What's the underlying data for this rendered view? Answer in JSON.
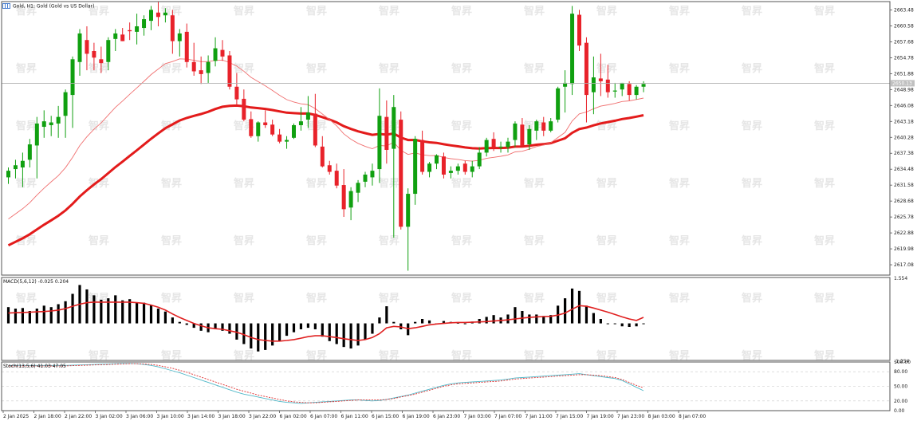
{
  "colors": {
    "bull": "#10a010",
    "bear": "#e8222a",
    "ma_slow": "#e31b1b",
    "ma_fast": "#f07070",
    "macd_hist": "#000000",
    "macd_signal": "#e02020",
    "stoch_k": "#50b8c8",
    "stoch_d": "#e03030",
    "frame": "#555555",
    "grid": "#c8c8c8"
  },
  "watermark_text": "智昇",
  "chart_data": [
    {
      "type": "candlestick",
      "title": "Gold, H1: Gold (Gold vs US Dollar)",
      "ylim": [
        2615.2,
        2665.0
      ],
      "y_ticks": [
        "2663.48",
        "2660.58",
        "2657.68",
        "2654.78",
        "2651.88",
        "2648.98",
        "2646.08",
        "2643.18",
        "2640.28",
        "2637.38",
        "2634.48",
        "2631.58",
        "2628.68",
        "2625.78",
        "2622.88",
        "2619.98",
        "2617.08"
      ],
      "current_price": 2650.13,
      "current_price_label": "2650.13",
      "x_ticks": [
        "2 Jan 2025",
        "2 Jan 18:00",
        "2 Jan 22:00",
        "3 Jan 02:00",
        "3 Jan 06:00",
        "3 Jan 10:00",
        "3 Jan 14:00",
        "3 Jan 18:00",
        "3 Jan 22:00",
        "6 Jan 02:00",
        "6 Jan 07:00",
        "6 Jan 11:00",
        "6 Jan 15:00",
        "6 Jan 19:00",
        "6 Jan 23:00",
        "7 Jan 03:00",
        "7 Jan 07:00",
        "7 Jan 11:00",
        "7 Jan 15:00",
        "7 Jan 19:00",
        "7 Jan 23:00",
        "8 Jan 03:00",
        "8 Jan 07:00"
      ],
      "candles": [
        [
          2633.0,
          2634.8,
          2631.8,
          2634.2
        ],
        [
          2634.5,
          2636.2,
          2632.8,
          2635.2
        ],
        [
          2634.8,
          2637.5,
          2631.2,
          2636.0
        ],
        [
          2636.2,
          2640.0,
          2634.8,
          2639.0
        ],
        [
          2638.8,
          2644.0,
          2632.8,
          2642.8
        ],
        [
          2642.2,
          2645.2,
          2640.2,
          2643.2
        ],
        [
          2642.5,
          2644.2,
          2640.5,
          2643.0
        ],
        [
          2642.8,
          2646.0,
          2640.2,
          2644.0
        ],
        [
          2644.2,
          2649.0,
          2640.2,
          2648.5
        ],
        [
          2648.0,
          2655.0,
          2642.0,
          2654.5
        ],
        [
          2654.0,
          2660.0,
          2651.5,
          2659.2
        ],
        [
          2658.0,
          2660.5,
          2652.5,
          2655.5
        ],
        [
          2656.0,
          2657.5,
          2652.5,
          2654.8
        ],
        [
          2654.5,
          2656.8,
          2652.0,
          2653.8
        ],
        [
          2654.0,
          2658.5,
          2652.5,
          2658.0
        ],
        [
          2658.2,
          2660.0,
          2656.0,
          2659.2
        ],
        [
          2659.0,
          2660.2,
          2657.8,
          2657.8
        ],
        [
          2659.8,
          2661.2,
          2658.0,
          2659.6
        ],
        [
          2659.5,
          2662.8,
          2657.2,
          2660.5
        ],
        [
          2660.2,
          2662.5,
          2658.8,
          2661.8
        ],
        [
          2661.5,
          2664.2,
          2659.8,
          2663.5
        ],
        [
          2663.0,
          2665.0,
          2660.5,
          2662.2
        ],
        [
          2662.5,
          2663.8,
          2661.2,
          2663.0
        ],
        [
          2662.5,
          2663.5,
          2655.5,
          2657.8
        ],
        [
          2657.8,
          2660.0,
          2655.0,
          2659.2
        ],
        [
          2659.5,
          2661.0,
          2653.0,
          2654.0
        ],
        [
          2654.0,
          2657.5,
          2651.5,
          2652.3
        ],
        [
          2652.5,
          2655.0,
          2650.0,
          2651.8
        ],
        [
          2652.0,
          2655.2,
          2650.2,
          2654.0
        ],
        [
          2654.2,
          2658.5,
          2653.2,
          2656.5
        ],
        [
          2656.2,
          2658.0,
          2654.2,
          2655.0
        ],
        [
          2655.2,
          2656.0,
          2649.0,
          2649.5
        ],
        [
          2649.5,
          2652.0,
          2646.0,
          2647.2
        ],
        [
          2647.3,
          2649.0,
          2643.2,
          2643.5
        ],
        [
          2643.6,
          2645.0,
          2640.2,
          2640.5
        ],
        [
          2640.5,
          2643.2,
          2639.5,
          2643.0
        ],
        [
          2643.0,
          2645.2,
          2642.0,
          2642.5
        ],
        [
          2642.6,
          2643.5,
          2640.5,
          2640.8
        ],
        [
          2640.8,
          2641.8,
          2639.2,
          2639.5
        ],
        [
          2639.5,
          2640.5,
          2638.2,
          2639.8
        ],
        [
          2640.2,
          2642.8,
          2640.0,
          2642.5
        ],
        [
          2642.5,
          2645.8,
          2641.5,
          2643.2
        ],
        [
          2643.5,
          2647.8,
          2642.0,
          2644.8
        ],
        [
          2644.6,
          2648.2,
          2638.5,
          2638.8
        ],
        [
          2638.6,
          2640.5,
          2634.8,
          2635.0
        ],
        [
          2635.2,
          2636.0,
          2633.5,
          2634.0
        ],
        [
          2634.2,
          2635.5,
          2631.0,
          2631.5
        ],
        [
          2631.6,
          2634.5,
          2625.8,
          2627.2
        ],
        [
          2627.5,
          2631.2,
          2625.2,
          2630.5
        ],
        [
          2630.2,
          2632.5,
          2628.5,
          2632.0
        ],
        [
          2632.2,
          2634.0,
          2631.2,
          2633.5
        ],
        [
          2633.0,
          2635.5,
          2631.5,
          2634.2
        ],
        [
          2634.5,
          2649.2,
          2632.0,
          2644.2
        ],
        [
          2644.0,
          2647.0,
          2635.5,
          2638.0
        ],
        [
          2638.2,
          2648.0,
          2622.0,
          2645.8
        ],
        [
          2643.5,
          2645.0,
          2623.5,
          2624.0
        ],
        [
          2624.0,
          2631.0,
          2616.0,
          2630.0
        ],
        [
          2630.0,
          2640.5,
          2628.0,
          2640.0
        ],
        [
          2639.8,
          2641.5,
          2633.5,
          2634.0
        ],
        [
          2634.0,
          2635.8,
          2633.0,
          2635.5
        ],
        [
          2635.5,
          2637.2,
          2634.5,
          2637.0
        ],
        [
          2636.8,
          2637.5,
          2632.8,
          2633.5
        ],
        [
          2633.8,
          2635.0,
          2632.8,
          2634.2
        ],
        [
          2634.2,
          2635.5,
          2633.5,
          2635.0
        ],
        [
          2635.5,
          2636.0,
          2633.5,
          2634.0
        ],
        [
          2634.0,
          2636.0,
          2633.0,
          2635.0
        ],
        [
          2635.0,
          2638.5,
          2634.5,
          2637.5
        ],
        [
          2637.5,
          2640.2,
          2636.8,
          2639.8
        ],
        [
          2640.0,
          2641.2,
          2637.8,
          2638.5
        ],
        [
          2638.5,
          2639.5,
          2637.5,
          2638.6
        ],
        [
          2638.5,
          2640.2,
          2637.5,
          2639.5
        ],
        [
          2639.8,
          2643.2,
          2638.5,
          2642.8
        ],
        [
          2642.6,
          2643.8,
          2638.8,
          2638.8
        ],
        [
          2639.0,
          2642.5,
          2638.0,
          2641.8
        ],
        [
          2641.5,
          2643.5,
          2639.8,
          2643.2
        ],
        [
          2643.0,
          2644.0,
          2640.5,
          2641.5
        ],
        [
          2641.5,
          2643.8,
          2641.2,
          2643.2
        ],
        [
          2643.5,
          2649.5,
          2643.0,
          2649.2
        ],
        [
          2649.5,
          2652.5,
          2644.8,
          2650.2
        ],
        [
          2650.0,
          2664.2,
          2648.0,
          2662.8
        ],
        [
          2662.6,
          2663.5,
          2656.0,
          2657.0
        ],
        [
          2657.5,
          2658.5,
          2643.0,
          2648.0
        ],
        [
          2648.5,
          2655.0,
          2644.5,
          2651.2
        ],
        [
          2651.0,
          2655.5,
          2647.8,
          2650.5
        ],
        [
          2650.8,
          2653.5,
          2647.5,
          2648.5
        ],
        [
          2648.8,
          2650.2,
          2647.5,
          2648.8
        ],
        [
          2649.0,
          2650.2,
          2647.8,
          2650.2
        ],
        [
          2650.0,
          2650.5,
          2647.0,
          2648.0
        ],
        [
          2648.0,
          2649.8,
          2647.2,
          2649.5
        ],
        [
          2649.5,
          2650.5,
          2648.5,
          2650.0
        ]
      ]
    },
    {
      "type": "bar",
      "title": "MACD(5,6,12) -0.025 0.204",
      "ylim": [
        -1.254,
        1.554
      ],
      "y_ticks": [
        "1.554",
        "-1.254"
      ],
      "histogram": [
        0.55,
        0.5,
        0.52,
        0.42,
        0.5,
        0.6,
        0.55,
        0.65,
        0.75,
        1.0,
        1.3,
        1.15,
        0.95,
        0.8,
        0.85,
        0.95,
        0.78,
        0.82,
        0.7,
        0.7,
        0.62,
        0.5,
        0.4,
        0.2,
        0.05,
        -0.05,
        -0.15,
        -0.25,
        -0.3,
        -0.2,
        -0.25,
        -0.35,
        -0.55,
        -0.7,
        -0.85,
        -0.95,
        -0.9,
        -0.75,
        -0.6,
        -0.42,
        -0.3,
        -0.2,
        -0.15,
        -0.2,
        -0.45,
        -0.6,
        -0.7,
        -0.8,
        -0.85,
        -0.75,
        -0.55,
        -0.35,
        0.2,
        0.58,
        0.05,
        -0.2,
        -0.4,
        0.05,
        0.15,
        0.1,
        0.0,
        0.08,
        0.05,
        0.02,
        0.0,
        0.06,
        0.15,
        0.22,
        0.28,
        0.2,
        0.3,
        0.55,
        0.42,
        0.3,
        0.3,
        0.25,
        0.28,
        0.6,
        0.85,
        1.18,
        1.1,
        0.6,
        0.35,
        0.15,
        0.0,
        -0.02,
        -0.1,
        -0.12,
        -0.1,
        -0.025
      ],
      "signal": [
        0.35,
        0.36,
        0.37,
        0.38,
        0.39,
        0.4,
        0.42,
        0.45,
        0.5,
        0.58,
        0.65,
        0.7,
        0.72,
        0.72,
        0.72,
        0.72,
        0.72,
        0.72,
        0.7,
        0.68,
        0.62,
        0.55,
        0.45,
        0.32,
        0.2,
        0.1,
        0.0,
        -0.08,
        -0.15,
        -0.18,
        -0.2,
        -0.25,
        -0.3,
        -0.38,
        -0.48,
        -0.55,
        -0.58,
        -0.6,
        -0.6,
        -0.58,
        -0.55,
        -0.5,
        -0.45,
        -0.42,
        -0.42,
        -0.45,
        -0.48,
        -0.52,
        -0.55,
        -0.58,
        -0.55,
        -0.48,
        -0.35,
        -0.15,
        -0.1,
        -0.12,
        -0.18,
        -0.15,
        -0.1,
        -0.05,
        -0.02,
        0.0,
        0.02,
        0.03,
        0.03,
        0.04,
        0.05,
        0.06,
        0.08,
        0.1,
        0.12,
        0.15,
        0.18,
        0.2,
        0.22,
        0.23,
        0.24,
        0.28,
        0.35,
        0.48,
        0.6,
        0.58,
        0.52,
        0.45,
        0.38,
        0.3,
        0.22,
        0.15,
        0.1,
        0.204
      ]
    },
    {
      "type": "line",
      "title": "Stoch(13,5,6) 41.03 47.05",
      "ylim": [
        0,
        100
      ],
      "y_ticks": [
        {
          "v": 100,
          "t": "100.00"
        },
        {
          "v": 80,
          "t": "80.00"
        },
        {
          "v": 50,
          "t": "50.00"
        },
        {
          "v": 20,
          "t": "20.00"
        },
        {
          "v": 0,
          "t": "0.00"
        }
      ],
      "k": [
        93,
        93,
        93,
        93,
        93,
        93,
        93,
        93,
        93,
        93.5,
        94,
        94.5,
        95,
        95.5,
        96,
        96.5,
        97,
        97,
        96.5,
        95,
        93,
        90,
        86,
        82,
        78,
        73,
        68,
        63,
        58,
        53,
        48,
        43,
        38,
        34,
        31,
        28,
        25,
        22,
        19,
        17,
        16,
        15,
        16,
        17,
        18,
        19,
        20,
        21,
        22,
        22,
        21,
        20,
        21,
        23,
        26,
        29,
        32,
        36,
        40,
        44,
        48,
        52,
        55,
        57,
        58,
        59,
        60,
        61,
        62,
        63,
        65,
        67,
        68,
        69,
        70,
        71,
        72,
        73,
        74,
        75,
        76,
        74,
        72,
        70,
        68,
        66,
        62,
        55,
        48,
        41.03
      ],
      "d": [
        92,
        92,
        92,
        92,
        92,
        92,
        92,
        92,
        92,
        92.5,
        93,
        93.5,
        94,
        94.5,
        95,
        95.5,
        96,
        96.5,
        96.5,
        96,
        95,
        93,
        90,
        87,
        83,
        79,
        74,
        69,
        64,
        59,
        54,
        49,
        44,
        40,
        36,
        32,
        29,
        26,
        23,
        20,
        18,
        17,
        16,
        16,
        17,
        18,
        19,
        20,
        21,
        22,
        22,
        22,
        22,
        23,
        25,
        28,
        31,
        34,
        38,
        42,
        46,
        50,
        53,
        55,
        56,
        57,
        58,
        59,
        60,
        61,
        63,
        65,
        66,
        67,
        68,
        69,
        70,
        71,
        72,
        73,
        74,
        74,
        73,
        72,
        70,
        68,
        64,
        58,
        52,
        47.05
      ]
    }
  ]
}
